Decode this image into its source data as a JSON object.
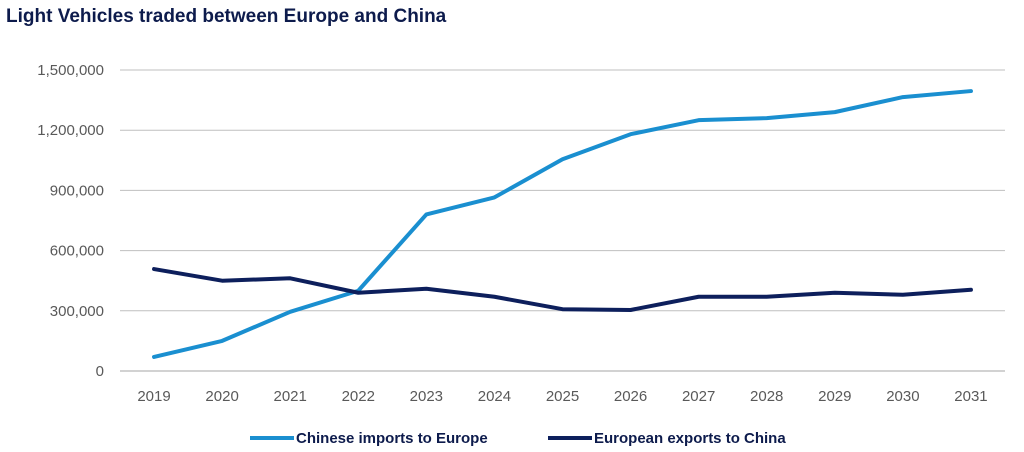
{
  "chart_data": {
    "type": "line",
    "title": "Light Vehicles traded between Europe and China",
    "xlabel": "",
    "ylabel": "",
    "x": [
      "2019",
      "2020",
      "2021",
      "2022",
      "2023",
      "2024",
      "2025",
      "2026",
      "2027",
      "2028",
      "2029",
      "2030",
      "2031"
    ],
    "ylim": [
      0,
      1500000
    ],
    "yticks": [
      0,
      300000,
      600000,
      900000,
      1200000,
      1500000
    ],
    "ytick_labels": [
      "0",
      "300,000",
      "600,000",
      "900,000",
      "1,200,000",
      "1,500,000"
    ],
    "grid": true,
    "legend": "bottom",
    "series": [
      {
        "name": "Chinese imports to Europe",
        "color": "#1a8fd0",
        "values": [
          70000,
          150000,
          295000,
          400000,
          780000,
          865000,
          1055000,
          1180000,
          1250000,
          1260000,
          1290000,
          1365000,
          1395000
        ]
      },
      {
        "name": "European exports to China",
        "color": "#0d1f5c",
        "values": [
          508000,
          450000,
          462000,
          390000,
          410000,
          370000,
          308000,
          304000,
          370000,
          370000,
          390000,
          380000,
          405000
        ]
      }
    ]
  }
}
